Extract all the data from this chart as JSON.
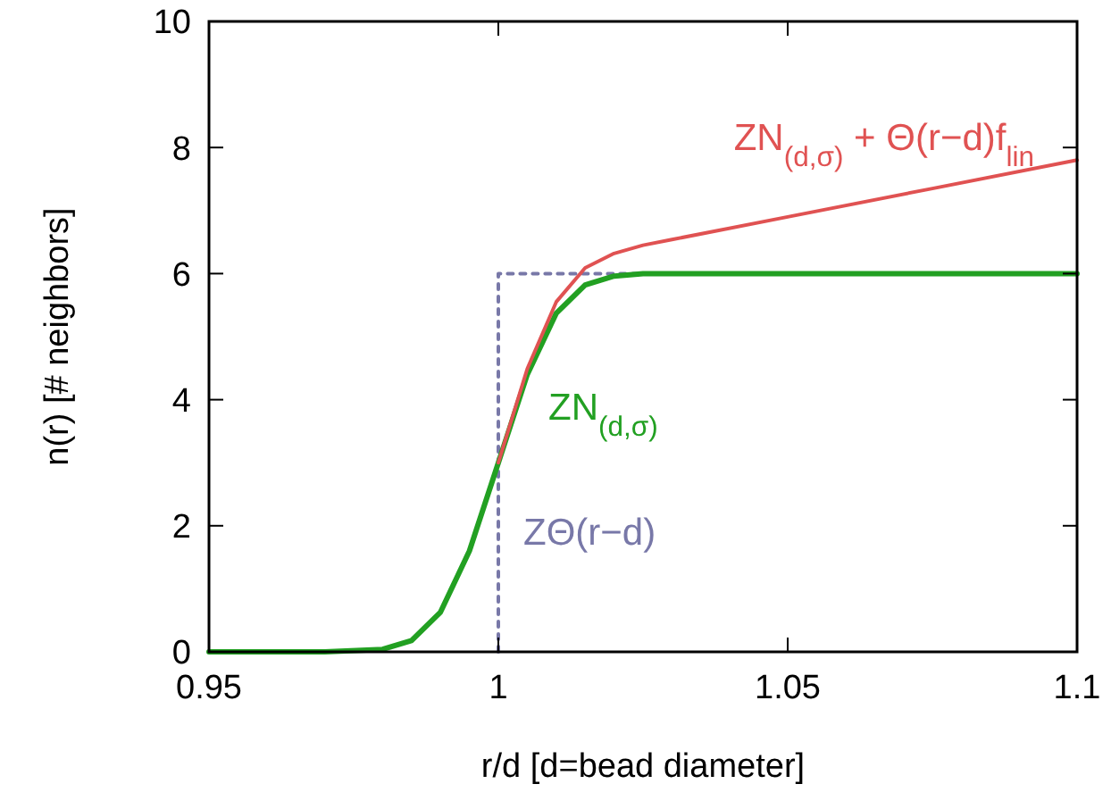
{
  "chart_data": {
    "type": "line",
    "xlabel": "r/d [d=bead diameter]",
    "ylabel": "n(r) [# neighbors]",
    "xlim": [
      0.95,
      1.1
    ],
    "ylim": [
      0,
      10
    ],
    "xticks": [
      0.95,
      1,
      1.05,
      1.1
    ],
    "yticks": [
      0,
      2,
      4,
      6,
      8,
      10
    ],
    "grid": false,
    "legend": false,
    "series": [
      {
        "name": "ZN$_{(d,σ)}$ + Θ(r−d)f$_{lin}$",
        "color": "#e05252",
        "x": [
          1.0,
          1.005,
          1.01,
          1.015,
          1.02,
          1.025,
          1.03,
          1.05,
          1.075,
          1.1
        ],
        "values": [
          3,
          4.49,
          5.55,
          6.09,
          6.32,
          6.45,
          6.54,
          6.9,
          7.35,
          7.8
        ]
      },
      {
        "name": "ZN$_{(d,σ)}$",
        "color": "#22a022",
        "x": [
          0.95,
          0.97,
          0.98,
          0.985,
          0.99,
          0.995,
          1.0,
          1.005,
          1.01,
          1.015,
          1.02,
          1.025,
          1.03,
          1.05,
          1.075,
          1.1
        ],
        "values": [
          0,
          0,
          0.04,
          0.18,
          0.63,
          1.6,
          3,
          4.4,
          5.37,
          5.82,
          5.96,
          6,
          6,
          6,
          6,
          6
        ]
      },
      {
        "name": "ZΘ(r−d)",
        "color": "#7878a8",
        "line_style": "dotted",
        "x": [
          1,
          1,
          1.1
        ],
        "values": [
          0,
          6,
          6
        ]
      }
    ]
  }
}
